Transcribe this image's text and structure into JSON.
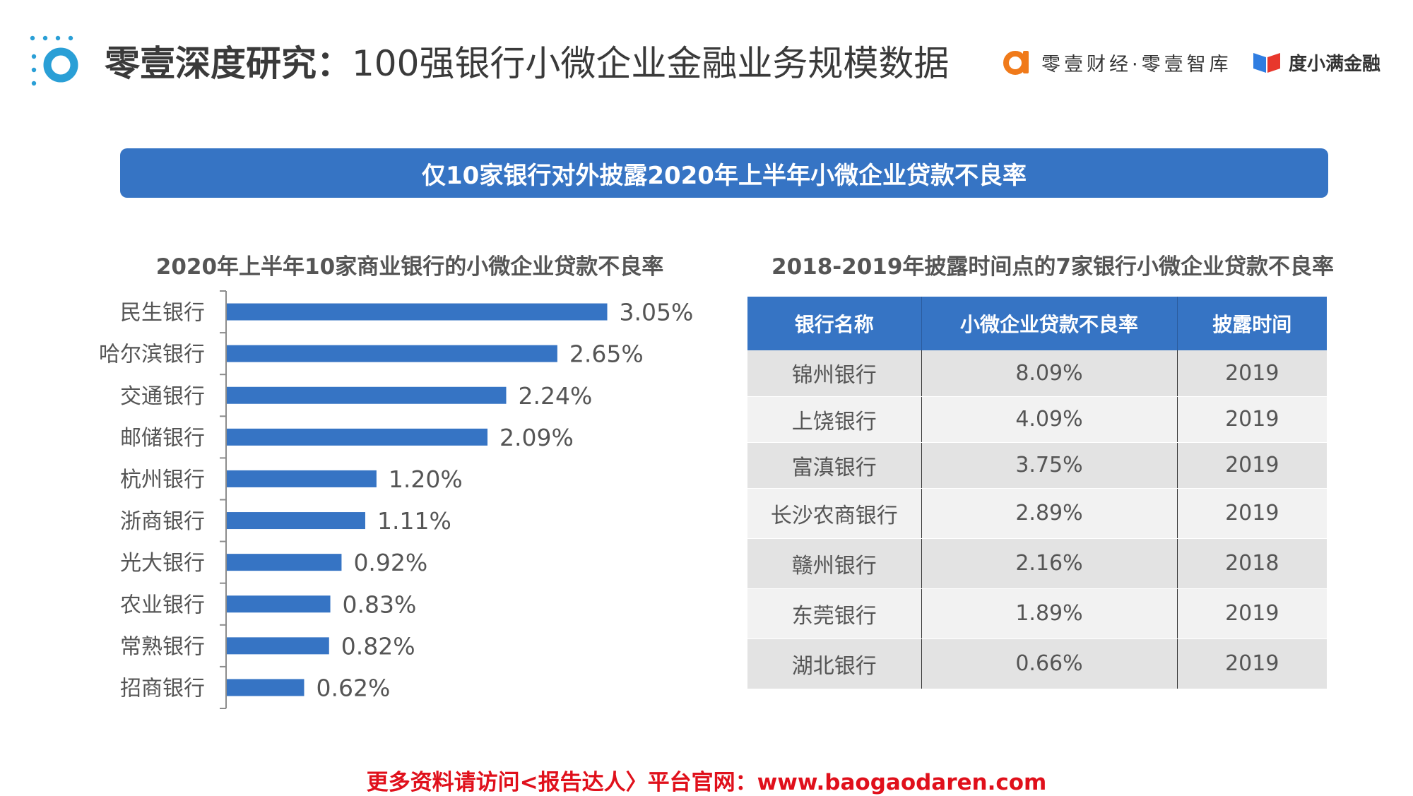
{
  "header": {
    "title_bold": "零壹深度研究：",
    "title_rest": "100强银行小微企业金融业务规模数据",
    "brand_primary": "零壹财经·零壹智库",
    "brand_secondary": "度小满金融"
  },
  "banner": {
    "text": "仅10家银行对外披露2020年上半年小微企业贷款不良率"
  },
  "chart_data": {
    "type": "bar",
    "orientation": "horizontal",
    "title": "2020年上半年10家商业银行的小微企业贷款不良率",
    "categories": [
      "民生银行",
      "哈尔滨银行",
      "交通银行",
      "邮储银行",
      "杭州银行",
      "浙商银行",
      "光大银行",
      "农业银行",
      "常熟银行",
      "招商银行"
    ],
    "values": [
      3.05,
      2.65,
      2.24,
      2.09,
      1.2,
      1.11,
      0.92,
      0.83,
      0.82,
      0.62
    ],
    "value_labels": [
      "3.05%",
      "2.65%",
      "2.24%",
      "2.09%",
      "1.20%",
      "1.11%",
      "0.92%",
      "0.83%",
      "0.82%",
      "0.62%"
    ],
    "xlabel": "",
    "ylabel": "",
    "xlim": [
      0,
      3.2
    ],
    "unit": "%",
    "bar_color": "#3674c4"
  },
  "table": {
    "title": "2018-2019年披露时间点的7家银行小微企业贷款不良率",
    "headers": [
      "银行名称",
      "小微企业贷款不良率",
      "披露时间"
    ],
    "rows": [
      [
        "锦州银行",
        "8.09%",
        "2019"
      ],
      [
        "上饶银行",
        "4.09%",
        "2019"
      ],
      [
        "富滇银行",
        "3.75%",
        "2019"
      ],
      [
        "长沙农商银行",
        "2.89%",
        "2019"
      ],
      [
        "赣州银行",
        "2.16%",
        "2018"
      ],
      [
        "东莞银行",
        "1.89%",
        "2019"
      ],
      [
        "湖北银行",
        "0.66%",
        "2019"
      ]
    ]
  },
  "footer": {
    "text": "更多资料请访问<报告达人〉平台官网：www.baogaodaren.com"
  },
  "colors": {
    "accent_blue": "#3674c4",
    "logo_orange": "#f07a1a",
    "footer_red": "#e0101b"
  }
}
